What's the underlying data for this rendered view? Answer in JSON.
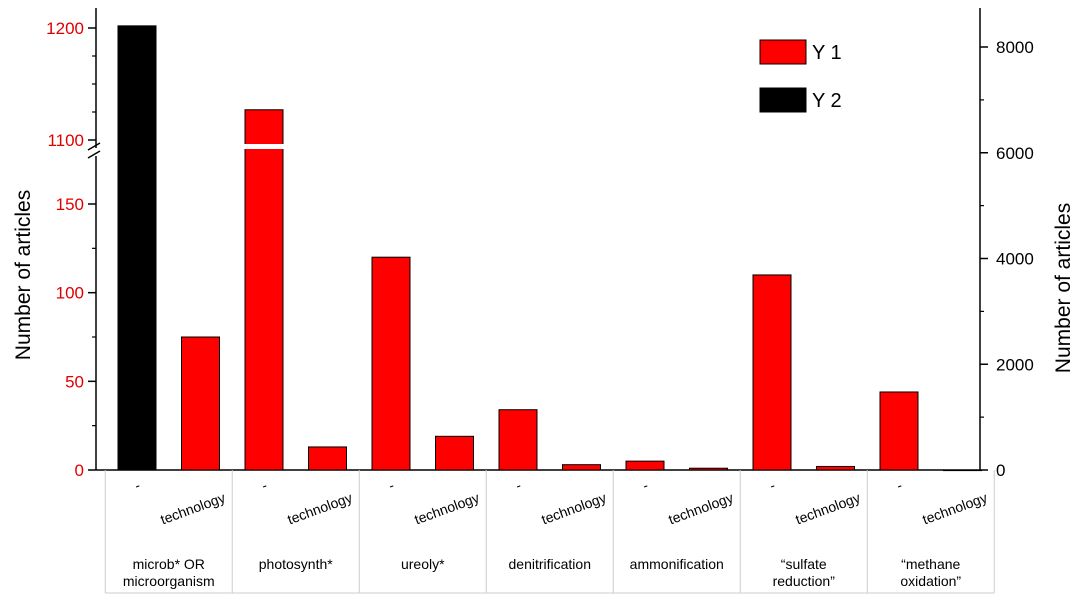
{
  "chart_data": {
    "type": "bar",
    "ylabel_left": "Number of articles",
    "ylabel_right": "Number of articles",
    "left_axis": {
      "broken": true,
      "lower_range": [
        0,
        175
      ],
      "upper_range": [
        1100,
        1200
      ],
      "ticks_lower": [
        0,
        50,
        100,
        150
      ],
      "ticks_upper": [
        1100,
        1200
      ],
      "tick_color": "#e00000"
    },
    "right_axis": {
      "range": [
        0,
        8500
      ],
      "ticks": [
        0,
        2000,
        4000,
        6000,
        8000
      ]
    },
    "legend": {
      "placement": "top-right",
      "items": [
        {
          "label": "Y 1",
          "color": "#ff0000"
        },
        {
          "label": "Y 2",
          "color": "#000000"
        }
      ]
    },
    "bars": [
      {
        "group": "microb* OR microorganism",
        "sub": "-",
        "series": "Y 2",
        "axis": "right",
        "value": 8400
      },
      {
        "group": "microb* OR microorganism",
        "sub": "technology",
        "series": "Y 1",
        "axis": "left",
        "value": 75
      },
      {
        "group": "photosynth*",
        "sub": "-",
        "series": "Y 1",
        "axis": "left",
        "value": 1127
      },
      {
        "group": "photosynth*",
        "sub": "technology",
        "series": "Y 1",
        "axis": "left",
        "value": 13
      },
      {
        "group": "ureoly*",
        "sub": "-",
        "series": "Y 1",
        "axis": "left",
        "value": 120
      },
      {
        "group": "ureoly*",
        "sub": "technology",
        "series": "Y 1",
        "axis": "left",
        "value": 19
      },
      {
        "group": "denitrification",
        "sub": "-",
        "series": "Y 1",
        "axis": "left",
        "value": 34
      },
      {
        "group": "denitrification",
        "sub": "technology",
        "series": "Y 1",
        "axis": "left",
        "value": 3
      },
      {
        "group": "ammonification",
        "sub": "-",
        "series": "Y 1",
        "axis": "left",
        "value": 5
      },
      {
        "group": "ammonification",
        "sub": "technology",
        "series": "Y 1",
        "axis": "left",
        "value": 1
      },
      {
        "group": "“sulfate reduction”",
        "sub": "-",
        "series": "Y 1",
        "axis": "left",
        "value": 110
      },
      {
        "group": "“sulfate reduction”",
        "sub": "technology",
        "series": "Y 1",
        "axis": "left",
        "value": 2
      },
      {
        "group": "“methane oxidation”",
        "sub": "-",
        "series": "Y 1",
        "axis": "left",
        "value": 44
      },
      {
        "group": "“methane oxidation”",
        "sub": "technology",
        "series": "Y 1",
        "axis": "left",
        "value": 0
      }
    ],
    "groups": [
      [
        "microb* OR",
        "microorganism"
      ],
      [
        "photosynth*"
      ],
      [
        "ureoly*"
      ],
      [
        "denitrification"
      ],
      [
        "ammonification"
      ],
      [
        "“sulfate",
        "reduction”"
      ],
      [
        "“methane",
        "oxidation”"
      ]
    ],
    "sub_labels": [
      "-",
      "technology"
    ]
  }
}
